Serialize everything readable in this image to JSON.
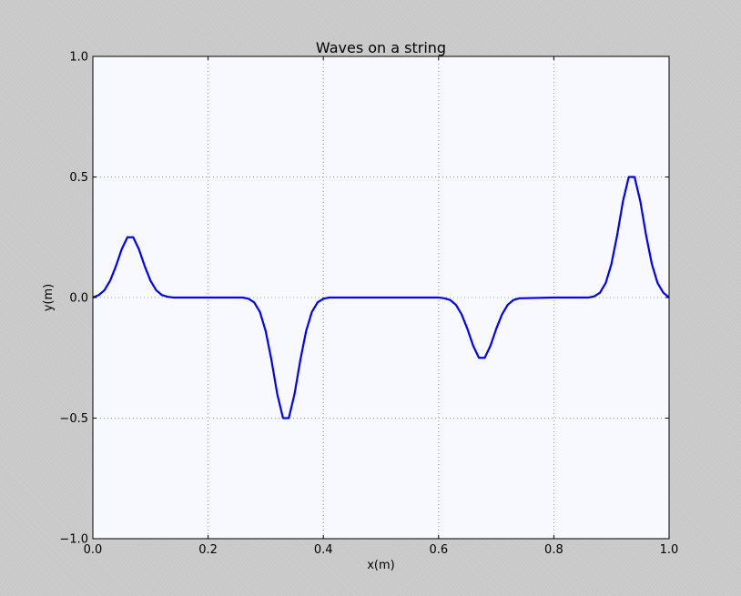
{
  "chart_data": {
    "type": "line",
    "title": "Waves on a string",
    "xlabel": "x(m)",
    "ylabel": "y(m)",
    "xlim": [
      0.0,
      1.0
    ],
    "ylim": [
      -1.0,
      1.0
    ],
    "grid": true,
    "xticks": [
      0.0,
      0.2,
      0.4,
      0.6,
      0.8,
      1.0
    ],
    "xtick_labels": [
      "0.0",
      "0.2",
      "0.4",
      "0.6",
      "0.8",
      "1.0"
    ],
    "yticks": [
      -1.0,
      -0.5,
      0.0,
      0.5,
      1.0
    ],
    "ytick_labels": [
      "−1.0",
      "−0.5",
      "0.0",
      "0.5",
      "1.0"
    ],
    "colors": {
      "line": "#0000ff",
      "axes_bg": "#f8f8ff",
      "grid": "#808080"
    },
    "series": [
      {
        "x": [
          0.0,
          0.01,
          0.02,
          0.03,
          0.04,
          0.05,
          0.06,
          0.07,
          0.08,
          0.09,
          0.1,
          0.11,
          0.12,
          0.13,
          0.14,
          0.15,
          0.2,
          0.25,
          0.26,
          0.27,
          0.28,
          0.29,
          0.3,
          0.31,
          0.32,
          0.33,
          0.34,
          0.35,
          0.36,
          0.37,
          0.38,
          0.39,
          0.4,
          0.41,
          0.42,
          0.45,
          0.6,
          0.61,
          0.62,
          0.63,
          0.64,
          0.65,
          0.66,
          0.67,
          0.68,
          0.69,
          0.7,
          0.71,
          0.72,
          0.73,
          0.74,
          0.8,
          0.86,
          0.87,
          0.88,
          0.89,
          0.9,
          0.91,
          0.92,
          0.93,
          0.94,
          0.95,
          0.96,
          0.97,
          0.98,
          0.99,
          1.0
        ],
        "values": [
          0.0,
          0.01,
          0.03,
          0.07,
          0.13,
          0.2,
          0.25,
          0.25,
          0.2,
          0.13,
          0.07,
          0.03,
          0.01,
          0.003,
          0.0,
          0.0,
          0.0,
          0.0,
          0.0,
          -0.005,
          -0.02,
          -0.06,
          -0.14,
          -0.26,
          -0.4,
          -0.5,
          -0.5,
          -0.4,
          -0.26,
          -0.14,
          -0.06,
          -0.02,
          -0.005,
          0.0,
          0.0,
          0.0,
          0.0,
          -0.003,
          -0.01,
          -0.03,
          -0.07,
          -0.13,
          -0.2,
          -0.25,
          -0.25,
          -0.2,
          -0.13,
          -0.07,
          -0.03,
          -0.01,
          -0.003,
          0.0,
          0.0,
          0.005,
          0.02,
          0.06,
          0.14,
          0.26,
          0.4,
          0.5,
          0.5,
          0.4,
          0.26,
          0.14,
          0.06,
          0.02,
          0.0
        ]
      }
    ]
  }
}
